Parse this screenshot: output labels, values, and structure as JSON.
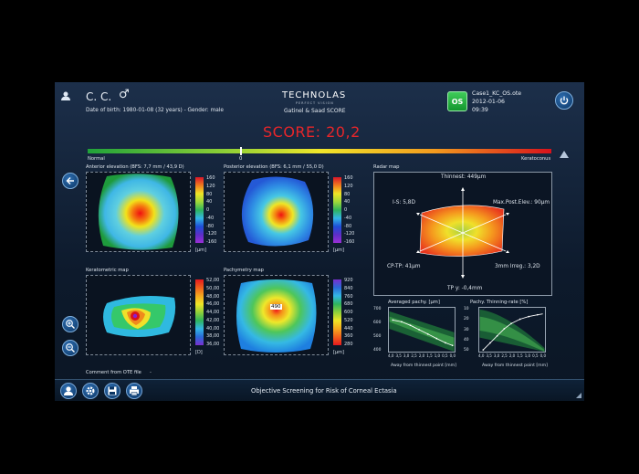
{
  "header": {
    "patient_name": "C. C.",
    "gender_symbol": "♂",
    "dob_line": "Date of birth: 1980-01-08 (32 years)  -  Gender: male",
    "logo_main": "TECHNOLAS",
    "logo_sub": "PERFECT VISION",
    "score_title": "Gatinel & Saad  SCORE",
    "eye_badge": "OS",
    "case_file": "Case1_KC_OS.ote",
    "case_date": "2012-01-06",
    "case_time": "09:39"
  },
  "score": {
    "label": "SCORE: 20,2",
    "value": 20.2,
    "bar_left_label": "Normal",
    "bar_zero_label": "0",
    "bar_right_label": "Keratoconus"
  },
  "maps": {
    "anterior": {
      "title": "Anterior elevation (BFS: 7,7 mm / 43,9 D)",
      "scale": [
        "160",
        "120",
        "80",
        "40",
        "0",
        "-40",
        "-80",
        "-120",
        "-160"
      ],
      "unit": "[μm]"
    },
    "posterior": {
      "title": "Posterior elevation (BFS: 6,1 mm / 55,0 D)",
      "scale": [
        "160",
        "120",
        "80",
        "40",
        "0",
        "-40",
        "-80",
        "-120",
        "-160"
      ],
      "unit": "[μm]"
    },
    "keratometric": {
      "title": "Keratometric map",
      "scale": [
        "52,00",
        "50,00",
        "48,00",
        "46,00",
        "44,00",
        "42,00",
        "40,00",
        "38,00",
        "36,00"
      ],
      "unit": "[D]"
    },
    "pachymetry": {
      "title": "Pachymetry map",
      "scale": [
        "920",
        "840",
        "760",
        "680",
        "600",
        "520",
        "440",
        "360",
        "280"
      ],
      "unit": "[μm]",
      "point_value": "490"
    }
  },
  "radar": {
    "title": "Radar map",
    "thinnest": "Thinnest: 449μm",
    "is": "I-S: 5,8D",
    "max_post": "Max.Post.Elev.: 90μm",
    "cp_tp": "CP-TP: 41μm",
    "irreg": "3mm Irreg.: 3,2D",
    "tp_y": "TP y: -0,4mm"
  },
  "avg_pachy": {
    "title": "Averaged pachy. [μm]",
    "y_ticks": [
      "700",
      "600",
      "500",
      "400"
    ],
    "x_ticks": [
      "4,0",
      "3,5",
      "3,0",
      "2,5",
      "2,0",
      "1,5",
      "1,0",
      "0,5",
      "0,0"
    ],
    "x_label": "Away from thinnest point [mm]"
  },
  "thin_rate": {
    "title": "Pachy. Thinning-rate [%]",
    "y_ticks": [
      "10",
      "20",
      "30",
      "40",
      "50"
    ],
    "x_ticks": [
      "4,0",
      "3,5",
      "3,0",
      "2,5",
      "2,0",
      "1,5",
      "1,0",
      "0,5",
      "0,0"
    ],
    "x_label": "Away from thinnest point [mm]"
  },
  "footer": {
    "comment_label": "Comment from OTE file",
    "comment_value": "-",
    "status": "Objective Screening for Risk of Corneal Ectasia"
  }
}
